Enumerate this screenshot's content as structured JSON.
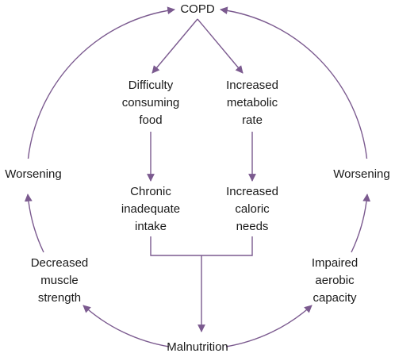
{
  "nodes": [
    {
      "id": "copd",
      "lines": [
        "COPD"
      ]
    },
    {
      "id": "difficulty",
      "lines": [
        "Difficulty",
        "consuming",
        "food"
      ]
    },
    {
      "id": "metabolic",
      "lines": [
        "Increased",
        "metabolic",
        "rate"
      ]
    },
    {
      "id": "chronic",
      "lines": [
        "Chronic",
        "inadequate",
        "intake"
      ]
    },
    {
      "id": "caloric",
      "lines": [
        "Increased",
        "caloric",
        "needs"
      ]
    },
    {
      "id": "worsening-left",
      "lines": [
        "Worsening"
      ]
    },
    {
      "id": "worsening-right",
      "lines": [
        "Worsening"
      ]
    },
    {
      "id": "muscle",
      "lines": [
        "Decreased",
        "muscle",
        "strength"
      ]
    },
    {
      "id": "aerobic",
      "lines": [
        "Impaired",
        "aerobic",
        "capacity"
      ]
    },
    {
      "id": "malnutrition",
      "lines": [
        "Malnutrition"
      ]
    }
  ]
}
